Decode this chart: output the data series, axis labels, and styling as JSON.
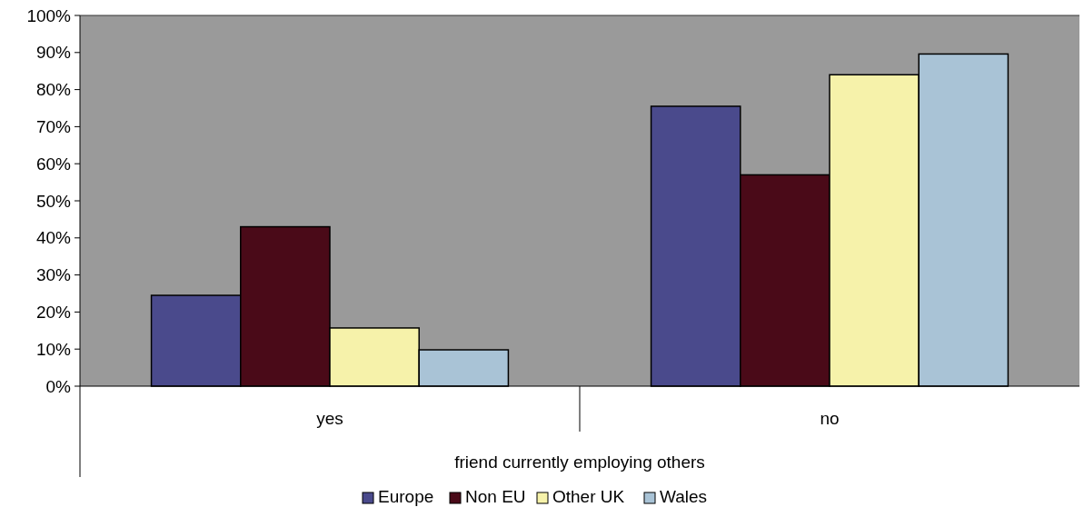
{
  "chart_data": {
    "type": "bar",
    "xlabel": "friend currently employing others",
    "categories": [
      "yes",
      "no"
    ],
    "series": [
      {
        "name": "Europe",
        "color": "#4a4a8c",
        "values": [
          24.5,
          75.5
        ]
      },
      {
        "name": "Non EU",
        "color": "#4a0a18",
        "values": [
          43,
          57
        ]
      },
      {
        "name": "Other UK",
        "color": "#f6f2aa",
        "values": [
          15.7,
          84
        ]
      },
      {
        "name": "Wales",
        "color": "#a9c3d6",
        "values": [
          9.8,
          89.6
        ]
      }
    ],
    "ylim": [
      0,
      100
    ],
    "yticks": [
      {
        "value": 0,
        "label": "0%"
      },
      {
        "value": 10,
        "label": "10%"
      },
      {
        "value": 20,
        "label": "20%"
      },
      {
        "value": 30,
        "label": "30%"
      },
      {
        "value": 40,
        "label": "40%"
      },
      {
        "value": 50,
        "label": "50%"
      },
      {
        "value": 60,
        "label": "60%"
      },
      {
        "value": 70,
        "label": "70%"
      },
      {
        "value": 80,
        "label": "80%"
      },
      {
        "value": 90,
        "label": "90%"
      },
      {
        "value": 100,
        "label": "100%"
      }
    ],
    "grid": false,
    "legend": "bottom"
  }
}
